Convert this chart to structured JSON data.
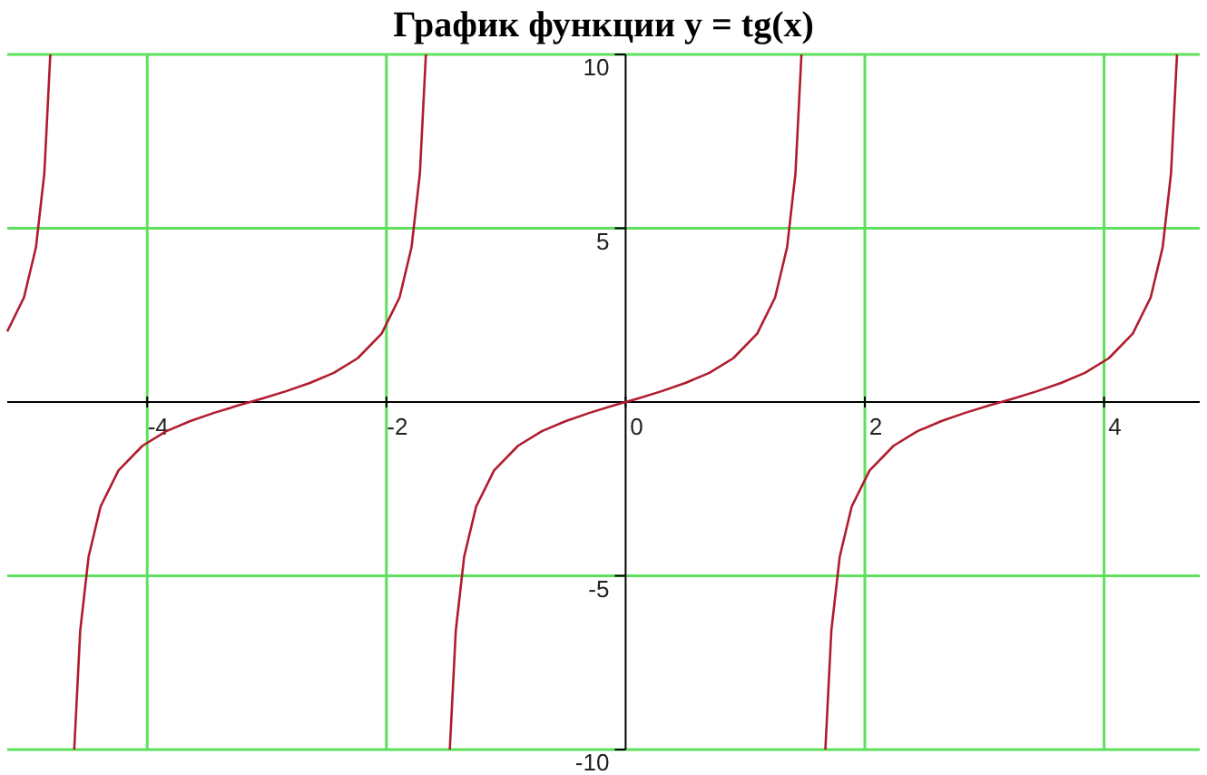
{
  "chart_data": {
    "type": "line",
    "title": "График функции y = tg(x)",
    "xlim": [
      -5.17,
      4.8
    ],
    "ylim": [
      -10,
      10
    ],
    "xticks": [
      -4,
      -2,
      0,
      2,
      4
    ],
    "yticks": [
      -10,
      -5,
      5,
      10
    ],
    "grid": true,
    "marker": "none",
    "line_style": "solid",
    "series": [
      {
        "color": "#b01c2e",
        "x": [
          -5.17,
          -5.03,
          -4.93,
          -4.86,
          -4.81,
          null,
          -4.61,
          -4.56,
          -4.49,
          -4.39,
          -4.24,
          -4.04,
          -3.84,
          -3.64,
          -3.44,
          -3.24,
          -3.14,
          -3.04,
          -2.84,
          -2.64,
          -2.44,
          -2.24,
          -2.04,
          -1.89,
          -1.79,
          -1.72,
          -1.67,
          null,
          -1.47,
          -1.42,
          -1.35,
          -1.25,
          -1.1,
          -0.9,
          -0.7,
          -0.5,
          -0.3,
          -0.1,
          0,
          0.1,
          0.3,
          0.5,
          0.7,
          0.9,
          1.1,
          1.25,
          1.35,
          1.42,
          1.47,
          null,
          1.67,
          1.72,
          1.79,
          1.89,
          2.04,
          2.24,
          2.44,
          2.64,
          2.84,
          3.04,
          3.14,
          3.24,
          3.44,
          3.64,
          3.84,
          4.04,
          4.24,
          4.39,
          4.49,
          4.56,
          4.61
        ],
        "values": [
          2.03,
          3.01,
          4.45,
          6.58,
          10,
          null,
          -10,
          -6.58,
          -4.45,
          -3.01,
          -1.97,
          -1.26,
          -0.84,
          -0.55,
          -0.31,
          -0.1,
          0,
          0.1,
          0.31,
          0.55,
          0.84,
          1.26,
          1.97,
          3.01,
          4.45,
          6.58,
          10,
          null,
          -10,
          -6.58,
          -4.45,
          -3.01,
          -1.97,
          -1.26,
          -0.84,
          -0.55,
          -0.31,
          -0.1,
          0,
          0.1,
          0.31,
          0.55,
          0.84,
          1.26,
          1.97,
          3.01,
          4.45,
          6.58,
          10,
          null,
          -10,
          -6.58,
          -4.45,
          -3.01,
          -1.97,
          -1.26,
          -0.84,
          -0.55,
          -0.31,
          -0.1,
          0,
          0.1,
          0.31,
          0.55,
          0.84,
          1.26,
          1.97,
          3.01,
          4.45,
          6.58,
          10
        ]
      }
    ]
  }
}
